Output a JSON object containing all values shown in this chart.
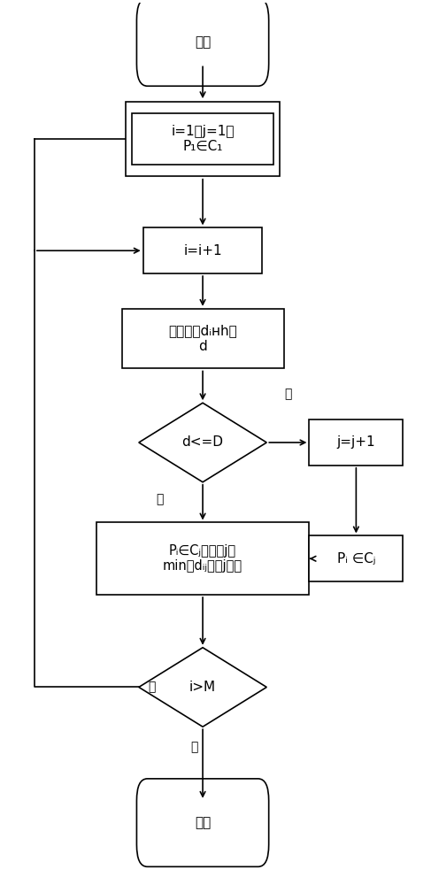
{
  "bg_color": "#ffffff",
  "line_color": "#000000",
  "text_color": "#000000",
  "font_size": 11,
  "font_size_small": 10,
  "start_text": "开始",
  "init_text": "i=1，j=1，\nP₁∈C₁",
  "incr_i_text": "i=i+1",
  "calc_text": "分别计算dᵢʜh和\nd",
  "diamond1_text": "d<=D",
  "assign_min_text": "Pᵢ∈Cⱼ，其中j与\nmin（dᵢⱼ）的j相同",
  "diamond2_text": "i>M",
  "end_text": "结束",
  "incr_j_text": "j=j+1",
  "assign_j_text": "Pᵢ ∈Cⱼ",
  "yes_label": "是",
  "no_label": "否"
}
